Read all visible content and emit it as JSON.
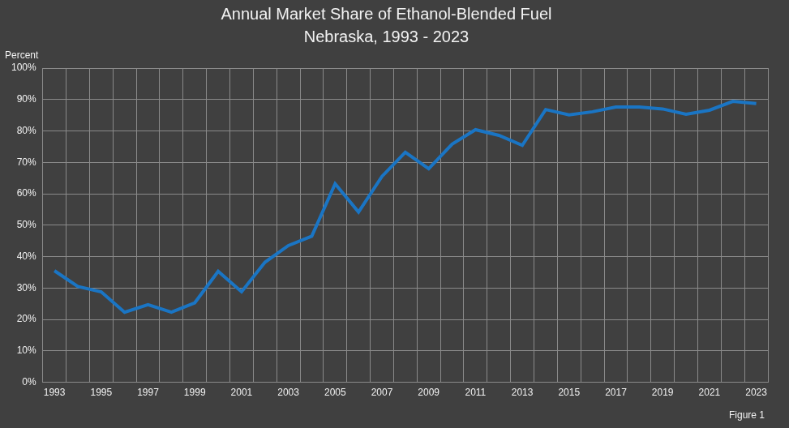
{
  "chart_data": {
    "type": "line",
    "title": "Annual Market Share of Ethanol-Blended Fuel",
    "subtitle": "Nebraska, 1993 - 2023",
    "ylabel": "Percent",
    "annotation": "Figure 1",
    "categories": [
      "1993",
      null,
      "1995",
      null,
      "1997",
      null,
      "1999",
      null,
      "2001",
      null,
      "2003",
      null,
      "2005",
      null,
      "2007",
      null,
      "2009",
      null,
      "2011",
      null,
      "2013",
      null,
      "2015",
      null,
      "2017",
      null,
      "2019",
      null,
      "2021",
      null,
      "2023"
    ],
    "values": [
      35.5,
      30.5,
      28.8,
      22.3,
      24.7,
      22.3,
      25.3,
      35.3,
      28.8,
      38.2,
      43.5,
      46.5,
      63.2,
      54.2,
      65.5,
      73.2,
      68.0,
      75.8,
      80.4,
      78.6,
      75.4,
      86.8,
      85.1,
      86.1,
      87.6,
      87.6,
      87.0,
      85.3,
      86.6,
      89.4,
      88.7
    ],
    "color": "#1a75c4",
    "ylim": [
      0,
      100
    ],
    "yticks": [
      {
        "value": 0,
        "label": "0%"
      },
      {
        "value": 10,
        "label": "10%"
      },
      {
        "value": 20,
        "label": "20%"
      },
      {
        "value": 30,
        "label": "30%"
      },
      {
        "value": 40,
        "label": "40%"
      },
      {
        "value": 50,
        "label": "50%"
      },
      {
        "value": 60,
        "label": "60%"
      },
      {
        "value": 70,
        "label": "70%"
      },
      {
        "value": 80,
        "label": "80%"
      },
      {
        "value": 90,
        "label": "90%"
      },
      {
        "value": 100,
        "label": "100%"
      }
    ],
    "grid": true
  }
}
